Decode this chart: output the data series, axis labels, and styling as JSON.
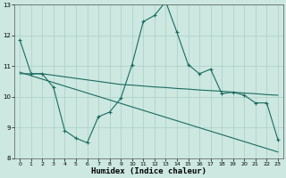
{
  "xlabel": "Humidex (Indice chaleur)",
  "xlim": [
    -0.5,
    23.5
  ],
  "ylim": [
    8,
    13
  ],
  "yticks": [
    8,
    9,
    10,
    11,
    12,
    13
  ],
  "xticks": [
    0,
    1,
    2,
    3,
    4,
    5,
    6,
    7,
    8,
    9,
    10,
    11,
    12,
    13,
    14,
    15,
    16,
    17,
    18,
    19,
    20,
    21,
    22,
    23
  ],
  "bg_color": "#cce8e0",
  "grid_color": "#aacec6",
  "line_color": "#1a6b60",
  "line1_x": [
    0,
    1,
    2,
    3,
    4,
    5,
    6,
    7,
    8,
    9,
    10,
    11,
    12,
    13,
    14,
    15,
    16,
    17,
    18,
    19,
    20,
    21,
    22,
    23
  ],
  "line1_y": [
    11.85,
    10.75,
    10.75,
    10.3,
    8.9,
    8.65,
    8.5,
    9.35,
    9.5,
    9.95,
    11.05,
    12.45,
    12.65,
    13.1,
    12.1,
    11.05,
    10.75,
    10.9,
    10.1,
    10.15,
    10.05,
    9.8,
    9.8,
    8.6
  ],
  "line2_x": [
    0,
    23
  ],
  "line2_y": [
    10.8,
    8.2
  ],
  "line3_x": [
    0,
    1,
    2,
    3,
    4,
    5,
    6,
    7,
    8,
    9,
    10,
    11,
    12,
    13,
    14,
    15,
    16,
    17,
    18,
    19,
    20,
    21,
    22,
    23
  ],
  "line3_y": [
    10.75,
    10.75,
    10.75,
    10.7,
    10.65,
    10.6,
    10.55,
    10.5,
    10.45,
    10.4,
    10.38,
    10.35,
    10.32,
    10.3,
    10.27,
    10.25,
    10.22,
    10.2,
    10.18,
    10.15,
    10.12,
    10.1,
    10.07,
    10.05
  ]
}
